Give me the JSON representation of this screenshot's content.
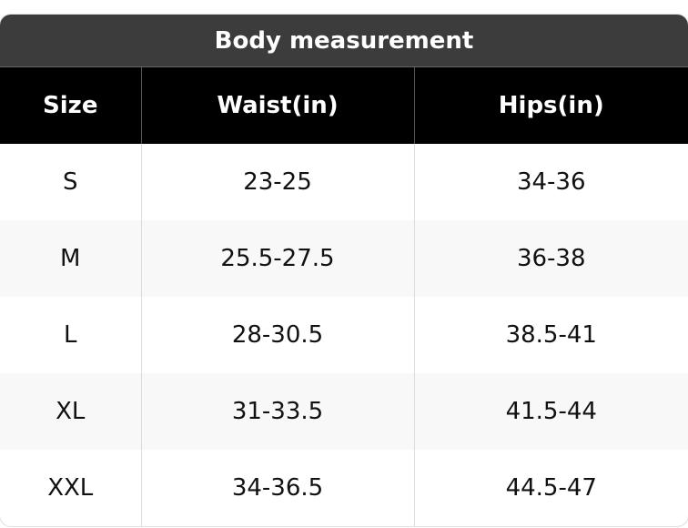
{
  "table": {
    "title": "Body measurement",
    "header": [
      "Size",
      "Waist(in)",
      "Hips(in)"
    ],
    "rows": [
      [
        "S",
        "23-25",
        "34-36"
      ],
      [
        "M",
        "25.5-27.5",
        "36-38"
      ],
      [
        "L",
        "28-30.5",
        "38.5-41"
      ],
      [
        "XL",
        "31-33.5",
        "41.5-44"
      ],
      [
        "XXL",
        "34-36.5",
        "44.5-47"
      ]
    ]
  }
}
